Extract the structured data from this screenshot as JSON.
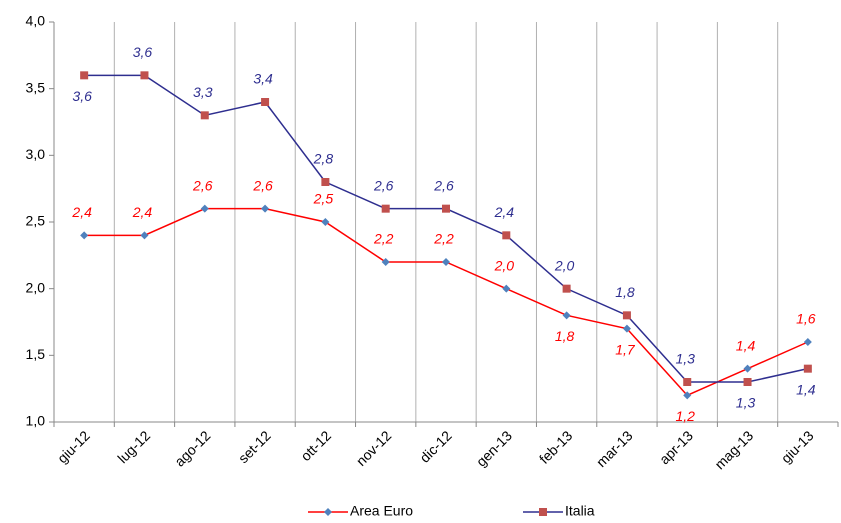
{
  "chart_data": {
    "type": "line",
    "categories": [
      "giu-12",
      "lug-12",
      "ago-12",
      "set-12",
      "ott-12",
      "nov-12",
      "dic-12",
      "gen-13",
      "feb-13",
      "mar-13",
      "apr-13",
      "mag-13",
      "giu-13"
    ],
    "series": [
      {
        "name": "Area Euro",
        "color": "#ff0000",
        "marker_color": "#4f81bd",
        "marker": "diamond",
        "values": [
          2.4,
          2.4,
          2.6,
          2.6,
          2.5,
          2.2,
          2.2,
          2.0,
          1.8,
          1.7,
          1.2,
          1.4,
          1.6
        ],
        "value_labels": [
          "2,4",
          "2,4",
          "2,6",
          "2,6",
          "2,5",
          "2,2",
          "2,2",
          "2,0",
          "1,8",
          "1,7",
          "1,2",
          "1,4",
          "1,6"
        ]
      },
      {
        "name": "Italia",
        "color": "#2e2e8f",
        "marker_color": "#c0504d",
        "marker": "square",
        "values": [
          3.6,
          3.6,
          3.3,
          3.4,
          2.8,
          2.6,
          2.6,
          2.4,
          2.0,
          1.8,
          1.3,
          1.3,
          1.4
        ],
        "value_labels": [
          "3,6",
          "3,6",
          "3,3",
          "3,4",
          "2,8",
          "2,6",
          "2,6",
          "2,4",
          "2,0",
          "1,8",
          "1,3",
          "1,3",
          "1,4"
        ]
      }
    ],
    "ylim": [
      1.0,
      4.0
    ],
    "yticks": [
      {
        "value": 1.0,
        "label": "1,0"
      },
      {
        "value": 1.5,
        "label": "1,5"
      },
      {
        "value": 2.0,
        "label": "2,0"
      },
      {
        "value": 2.5,
        "label": "2,5"
      },
      {
        "value": 3.0,
        "label": "3,0"
      },
      {
        "value": 3.5,
        "label": "3,5"
      },
      {
        "value": 4.0,
        "label": "4,0"
      }
    ],
    "grid": true,
    "legend": "bottom"
  }
}
